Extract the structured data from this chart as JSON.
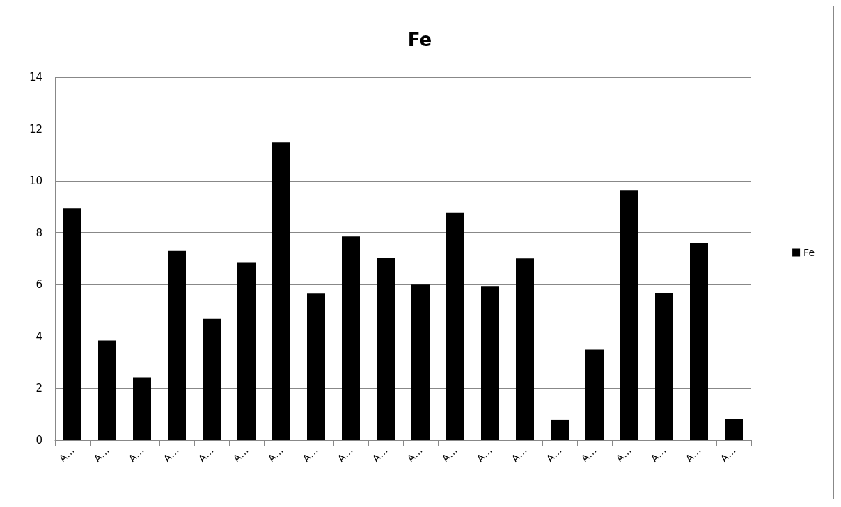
{
  "chart_data": {
    "type": "bar",
    "title": "Fe",
    "categories": [
      "A…",
      "A…",
      "A…",
      "A…",
      "A…",
      "A…",
      "A…",
      "A…",
      "A…",
      "A…",
      "A…",
      "A…",
      "A…",
      "A…",
      "A…",
      "A…",
      "A…",
      "A…",
      "A…",
      "A…"
    ],
    "series": [
      {
        "name": "Fe",
        "color": "#000000",
        "values": [
          8.95,
          3.85,
          2.43,
          7.3,
          4.7,
          6.85,
          11.5,
          5.65,
          7.85,
          7.03,
          6.0,
          8.78,
          5.95,
          7.02,
          0.78,
          3.5,
          9.65,
          5.67,
          7.6,
          0.82
        ]
      }
    ],
    "ylim": [
      0,
      14
    ],
    "yticks": [
      0,
      2,
      4,
      6,
      8,
      10,
      12,
      14
    ],
    "grid": "y",
    "legend": "right"
  }
}
